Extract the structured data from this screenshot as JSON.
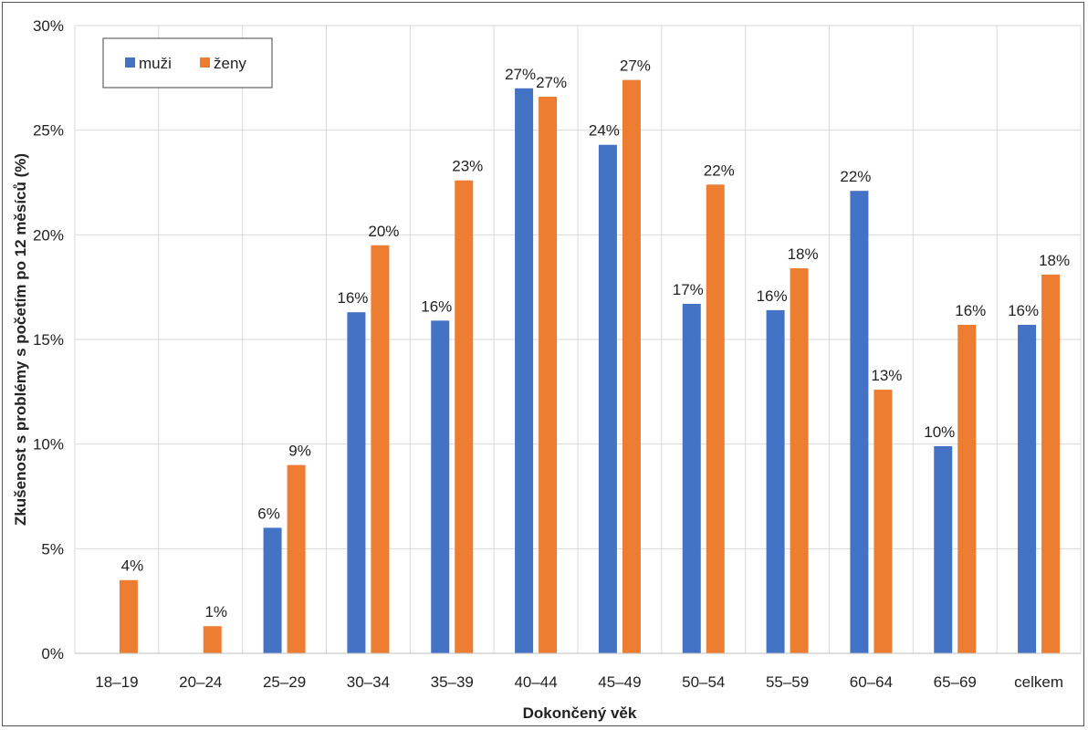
{
  "chart_data": {
    "type": "bar",
    "title": "",
    "xlabel": "Dokončený věk",
    "ylabel": "Zkušenost s problémy s početím po 12 měsíců (%)",
    "ylim": [
      0,
      30
    ],
    "y_ticks": [
      0,
      5,
      10,
      15,
      20,
      25,
      30
    ],
    "y_tick_labels": [
      "0%",
      "5%",
      "10%",
      "15%",
      "20%",
      "25%",
      "30%"
    ],
    "categories": [
      "18–19",
      "20–24",
      "25–29",
      "30–34",
      "35–39",
      "40–44",
      "45–49",
      "50–54",
      "55–59",
      "60–64",
      "65–69",
      "celkem"
    ],
    "grid": true,
    "legend_position": "top-left",
    "series": [
      {
        "name": "muži",
        "color": "#4472c4",
        "values": [
          null,
          null,
          6.0,
          16.3,
          15.9,
          27.0,
          24.3,
          16.7,
          16.4,
          22.1,
          9.9,
          15.7
        ],
        "labels": [
          "",
          "",
          "6%",
          "16%",
          "16%",
          "27%",
          "24%",
          "17%",
          "16%",
          "22%",
          "10%",
          "16%"
        ]
      },
      {
        "name": "ženy",
        "color": "#ed7d31",
        "values": [
          3.5,
          1.3,
          9.0,
          19.5,
          22.6,
          26.6,
          27.4,
          22.4,
          18.4,
          12.6,
          15.7,
          18.1
        ],
        "labels": [
          "4%",
          "1%",
          "9%",
          "20%",
          "23%",
          "27%",
          "27%",
          "22%",
          "18%",
          "13%",
          "16%",
          "18%"
        ]
      }
    ]
  }
}
